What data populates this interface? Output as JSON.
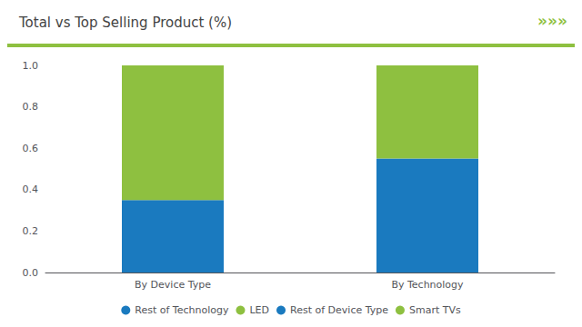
{
  "chart_data": {
    "type": "bar",
    "title": "Total vs Top Selling Product (%)",
    "annotations": [
      "»»»"
    ],
    "categories": [
      "By Device Type",
      "By Technology"
    ],
    "series": [
      {
        "name": "Rest of Technology",
        "color": "#1a7abf",
        "values": [
          null,
          0.55
        ]
      },
      {
        "name": "LED",
        "color": "#8ec040",
        "values": [
          null,
          0.45
        ]
      },
      {
        "name": "Rest of Device Type",
        "color": "#1a7abf",
        "values": [
          0.35,
          null
        ]
      },
      {
        "name": "Smart TVs",
        "color": "#8ec040",
        "values": [
          0.65,
          null
        ]
      }
    ],
    "stacked": true,
    "ylim": [
      0.0,
      1.0
    ],
    "yticks": [
      {
        "value": 0.0,
        "label": "0.0"
      },
      0.2,
      0.4,
      0.6,
      0.8,
      {
        "value": 1.0,
        "label": "1.0"
      }
    ],
    "grid": false,
    "legend": "bottom"
  }
}
